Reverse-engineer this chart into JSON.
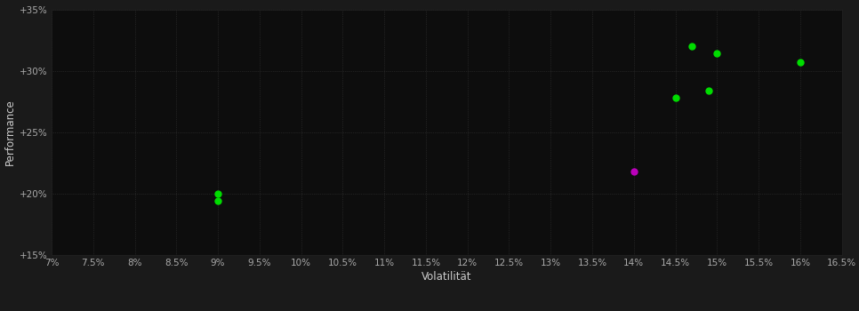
{
  "background_color": "#1a1a1a",
  "plot_bg_color": "#0d0d0d",
  "grid_color": "#3a3a3a",
  "xlabel": "Volatilität",
  "ylabel": "Performance",
  "xlim": [
    0.07,
    0.165
  ],
  "ylim": [
    0.15,
    0.35
  ],
  "xticks": [
    0.07,
    0.075,
    0.08,
    0.085,
    0.09,
    0.095,
    0.1,
    0.105,
    0.11,
    0.115,
    0.12,
    0.125,
    0.13,
    0.135,
    0.14,
    0.145,
    0.15,
    0.155,
    0.16,
    0.165
  ],
  "yticks": [
    0.15,
    0.2,
    0.25,
    0.3,
    0.35
  ],
  "xtick_labels": [
    "7%",
    "7.5%",
    "8%",
    "8.5%",
    "9%",
    "9.5%",
    "10%",
    "10.5%",
    "11%",
    "11.5%",
    "12%",
    "12.5%",
    "13%",
    "13.5%",
    "14%",
    "14.5%",
    "15%",
    "15.5%",
    "16%",
    "16.5%"
  ],
  "ytick_labels": [
    "+15%",
    "+20%",
    "+25%",
    "+30%",
    "+35%"
  ],
  "green_points": [
    [
      0.09,
      0.2
    ],
    [
      0.09,
      0.194
    ],
    [
      0.145,
      0.278
    ],
    [
      0.149,
      0.284
    ],
    [
      0.147,
      0.32
    ],
    [
      0.15,
      0.314
    ],
    [
      0.16,
      0.307
    ]
  ],
  "magenta_points": [
    [
      0.14,
      0.218
    ]
  ],
  "green_color": "#00dd00",
  "magenta_color": "#bb00bb",
  "marker_size": 25,
  "axis_label_color": "#cccccc",
  "tick_label_color": "#aaaaaa",
  "tick_label_fontsize": 7.5,
  "axis_label_fontsize": 8.5
}
